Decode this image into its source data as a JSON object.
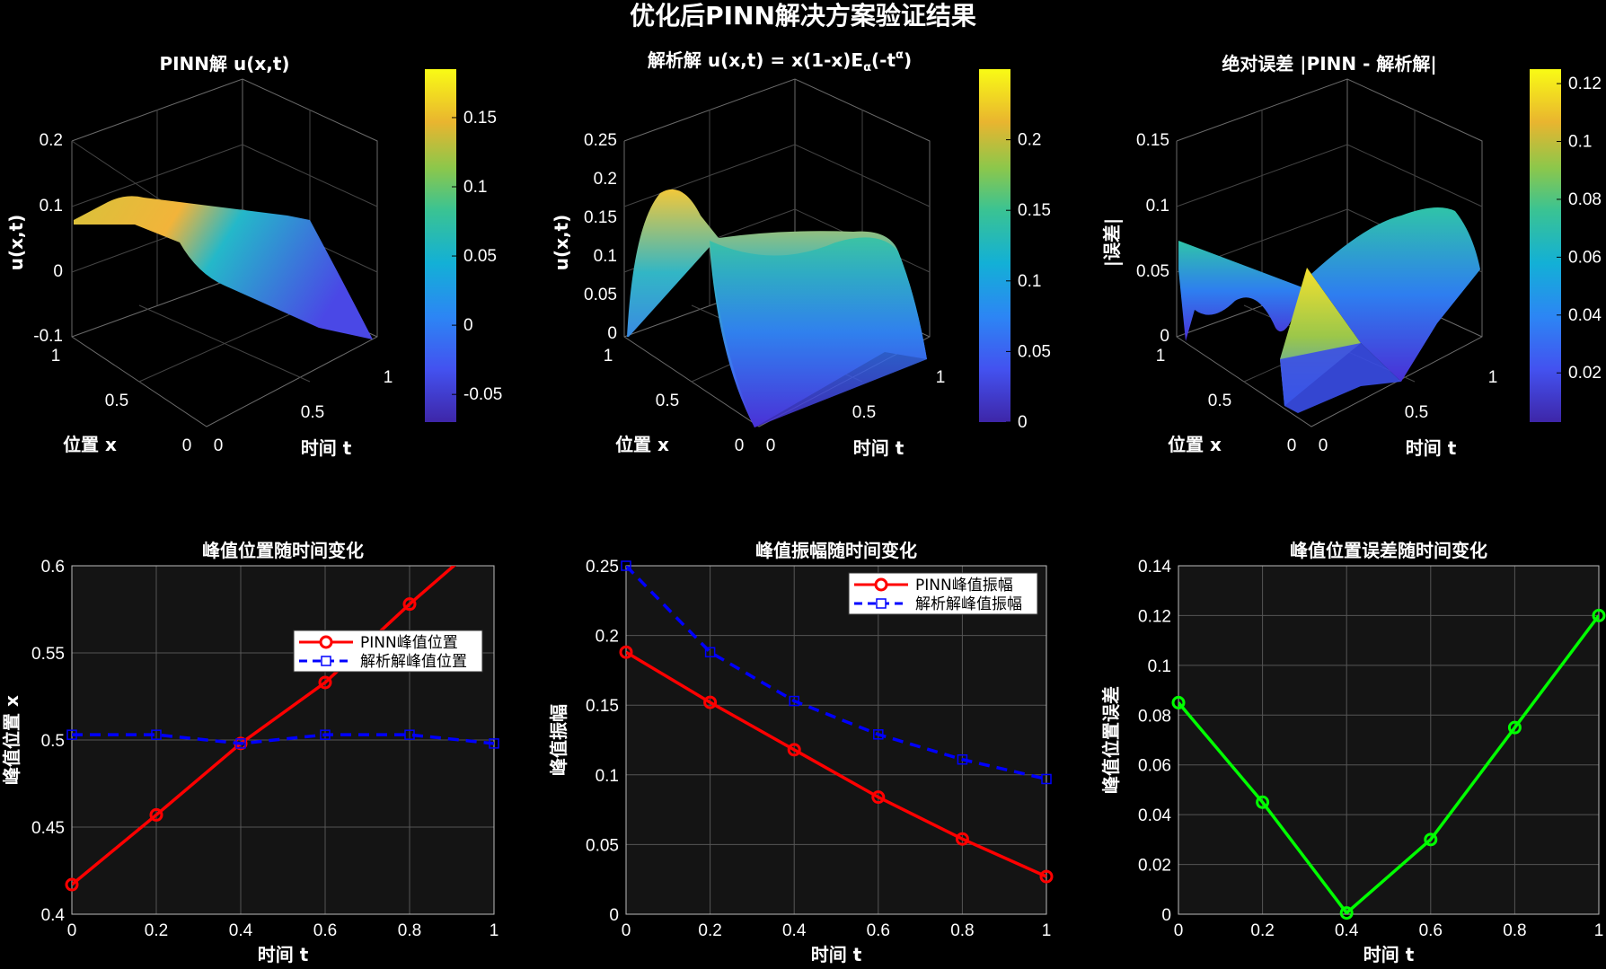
{
  "suptitle": "优化后PINN解决方案验证结果",
  "colors": {
    "background": "#000000",
    "axes_bg": "#141414",
    "grid": "#555555",
    "pinn": "#ff0000",
    "analytic": "#0000ff",
    "error": "#00ff00"
  },
  "colormap": "parula",
  "surfaces": [
    {
      "title": "PINN解 u(x,t)",
      "xlabel": "位置 x",
      "ylabel": "时间 t",
      "zlabel": "u(x,t)",
      "zticks": [
        "-0.1",
        "0",
        "0.1",
        "0.2"
      ],
      "xticks": [
        "0",
        "0.5",
        "1"
      ],
      "yticks": [
        "0",
        "0.5",
        "1"
      ],
      "colorbar_ticks": [
        "-0.05",
        "0",
        "0.05",
        "0.1",
        "0.15"
      ],
      "colorbar_range": [
        -0.07,
        0.185
      ]
    },
    {
      "title": "解析解 u(x,t) = x(1-x)E",
      "title_sub": "α",
      "title_tail": "(-t",
      "title_sup": "α",
      "title_end": ")",
      "xlabel": "位置 x",
      "ylabel": "时间 t",
      "zlabel": "u(x,t)",
      "zticks": [
        "0",
        "0.05",
        "0.1",
        "0.15",
        "0.2",
        "0.25"
      ],
      "xticks": [
        "0",
        "0.5",
        "1"
      ],
      "yticks": [
        "0",
        "0.5",
        "1"
      ],
      "colorbar_ticks": [
        "0",
        "0.05",
        "0.1",
        "0.15",
        "0.2"
      ],
      "colorbar_range": [
        0,
        0.25
      ]
    },
    {
      "title": "绝对误差 |PINN - 解析解|",
      "xlabel": "位置 x",
      "ylabel": "时间 t",
      "zlabel": "|误差|",
      "zticks": [
        "0",
        "0.05",
        "0.1",
        "0.15"
      ],
      "xticks": [
        "0",
        "0.5",
        "1"
      ],
      "yticks": [
        "0",
        "0.5",
        "1"
      ],
      "colorbar_ticks": [
        "0.02",
        "0.04",
        "0.06",
        "0.08",
        "0.1",
        "0.12"
      ],
      "colorbar_range": [
        0.003,
        0.125
      ]
    }
  ],
  "chart_data": [
    {
      "type": "line",
      "title": "峰值位置随时间变化",
      "xlabel": "时间 t",
      "ylabel": "峰值位置 x",
      "xlim": [
        0,
        1
      ],
      "ylim": [
        0.4,
        0.6
      ],
      "xticks": [
        "0",
        "0.2",
        "0.4",
        "0.6",
        "0.8",
        "1"
      ],
      "yticks": [
        "0.4",
        "0.45",
        "0.5",
        "0.55",
        "0.6"
      ],
      "x": [
        0,
        0.2,
        0.4,
        0.6,
        0.8,
        1
      ],
      "series": [
        {
          "name": "PINN峰值位置",
          "values": [
            0.417,
            0.457,
            0.498,
            0.533,
            0.578,
            0.62
          ],
          "style": "solid",
          "marker": "circle"
        },
        {
          "name": "解析解峰值位置",
          "values": [
            0.503,
            0.503,
            0.498,
            0.503,
            0.503,
            0.498
          ],
          "style": "dashed",
          "marker": "square"
        }
      ],
      "legend": "upper-right",
      "grid": true
    },
    {
      "type": "line",
      "title": "峰值振幅随时间变化",
      "xlabel": "时间 t",
      "ylabel": "峰值振幅",
      "xlim": [
        0,
        1
      ],
      "ylim": [
        0,
        0.25
      ],
      "xticks": [
        "0",
        "0.2",
        "0.4",
        "0.6",
        "0.8",
        "1"
      ],
      "yticks": [
        "0",
        "0.05",
        "0.1",
        "0.15",
        "0.2",
        "0.25"
      ],
      "x": [
        0,
        0.2,
        0.4,
        0.6,
        0.8,
        1
      ],
      "series": [
        {
          "name": "PINN峰值振幅",
          "values": [
            0.188,
            0.152,
            0.118,
            0.084,
            0.054,
            0.027
          ],
          "style": "solid",
          "marker": "circle"
        },
        {
          "name": "解析解峰值振幅",
          "values": [
            0.25,
            0.188,
            0.153,
            0.129,
            0.111,
            0.097
          ],
          "style": "dashed",
          "marker": "square"
        }
      ],
      "legend": "top-right",
      "grid": true
    },
    {
      "type": "line",
      "title": "峰值位置误差随时间变化",
      "xlabel": "时间 t",
      "ylabel": "峰值位置误差",
      "xlim": [
        0,
        1
      ],
      "ylim": [
        0,
        0.14
      ],
      "xticks": [
        "0",
        "0.2",
        "0.4",
        "0.6",
        "0.8",
        "1"
      ],
      "yticks": [
        "0",
        "0.02",
        "0.04",
        "0.06",
        "0.08",
        "0.1",
        "0.12",
        "0.14"
      ],
      "x": [
        0,
        0.2,
        0.4,
        0.6,
        0.8,
        1
      ],
      "series": [
        {
          "name": "",
          "values": [
            0.085,
            0.045,
            0.0005,
            0.03,
            0.075,
            0.12
          ],
          "style": "solid",
          "marker": "circle"
        }
      ],
      "grid": true
    }
  ]
}
